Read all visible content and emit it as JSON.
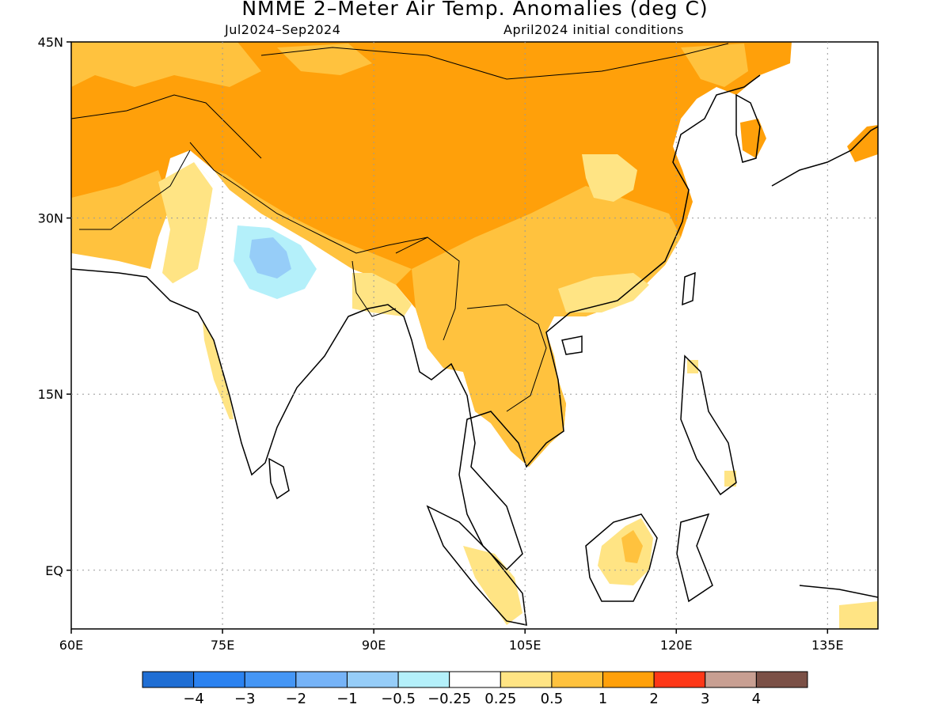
{
  "header": {
    "title": "NMME 2–Meter Air Temp. Anomalies (deg C)",
    "period": "Jul2024–Sep2024",
    "initial_conditions": "April2024 initial conditions"
  },
  "map": {
    "lon_range": [
      60,
      140
    ],
    "lat_range": [
      -5,
      45
    ],
    "lat_ticks": [
      {
        "value": 45,
        "label": "45N"
      },
      {
        "value": 30,
        "label": "30N"
      },
      {
        "value": 15,
        "label": "15N"
      },
      {
        "value": 0,
        "label": "EQ"
      }
    ],
    "lon_ticks": [
      {
        "value": 60,
        "label": "60E"
      },
      {
        "value": 75,
        "label": "75E"
      },
      {
        "value": 90,
        "label": "90E"
      },
      {
        "value": 105,
        "label": "105E"
      },
      {
        "value": 120,
        "label": "120E"
      },
      {
        "value": 135,
        "label": "135E"
      }
    ],
    "grid": "dotted"
  },
  "colorbar": {
    "colors": [
      "#1f6ed4",
      "#2b82f0",
      "#4596f5",
      "#76b3f7",
      "#96cdf8",
      "#b4f0fa",
      "#ffffff",
      "#ffe484",
      "#ffc23e",
      "#ffa00a",
      "#fe3717",
      "#c89f92",
      "#7b5046"
    ],
    "labels": [
      "−4",
      "−3",
      "−2",
      "−1",
      "−0.5",
      "−0.25",
      "0.25",
      "0.5",
      "1",
      "2",
      "3",
      "4"
    ]
  }
}
